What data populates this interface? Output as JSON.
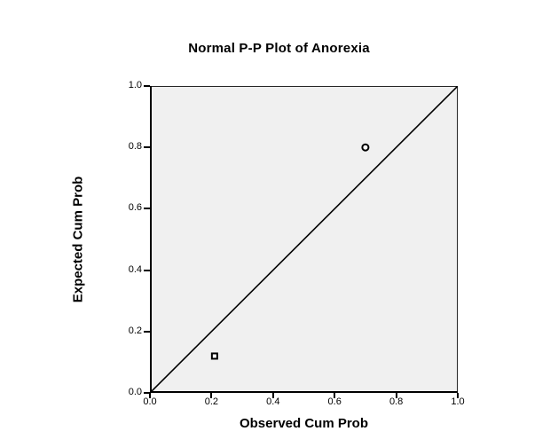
{
  "chart_data": {
    "type": "scatter",
    "title": "Normal P-P Plot of Anorexia",
    "xlabel": "Observed Cum Prob",
    "ylabel": "Expected Cum Prob",
    "xlim": [
      0.0,
      1.0
    ],
    "ylim": [
      0.0,
      1.0
    ],
    "x_tick_labels": [
      "0.0",
      "0.2",
      "0.4",
      "0.6",
      "0.8",
      "1.0"
    ],
    "y_tick_labels": [
      "0.0",
      "0.2",
      "0.4",
      "0.6",
      "0.8",
      "1.0"
    ],
    "grid": false,
    "legend": "none",
    "plot_background": "#f0f0f0",
    "frame_color": "#262626",
    "axis_color": "#000000",
    "text_color": "#000000",
    "points": [
      {
        "x": 0.21,
        "y": 0.12,
        "marker": "open-square"
      },
      {
        "x": 0.7,
        "y": 0.8,
        "marker": "open-circle"
      }
    ],
    "marker_fill": "#ffffff",
    "marker_stroke": "#000000",
    "reference_line": {
      "from": [
        0.0,
        0.0
      ],
      "to": [
        1.0,
        1.0
      ],
      "color": "#000000"
    }
  }
}
